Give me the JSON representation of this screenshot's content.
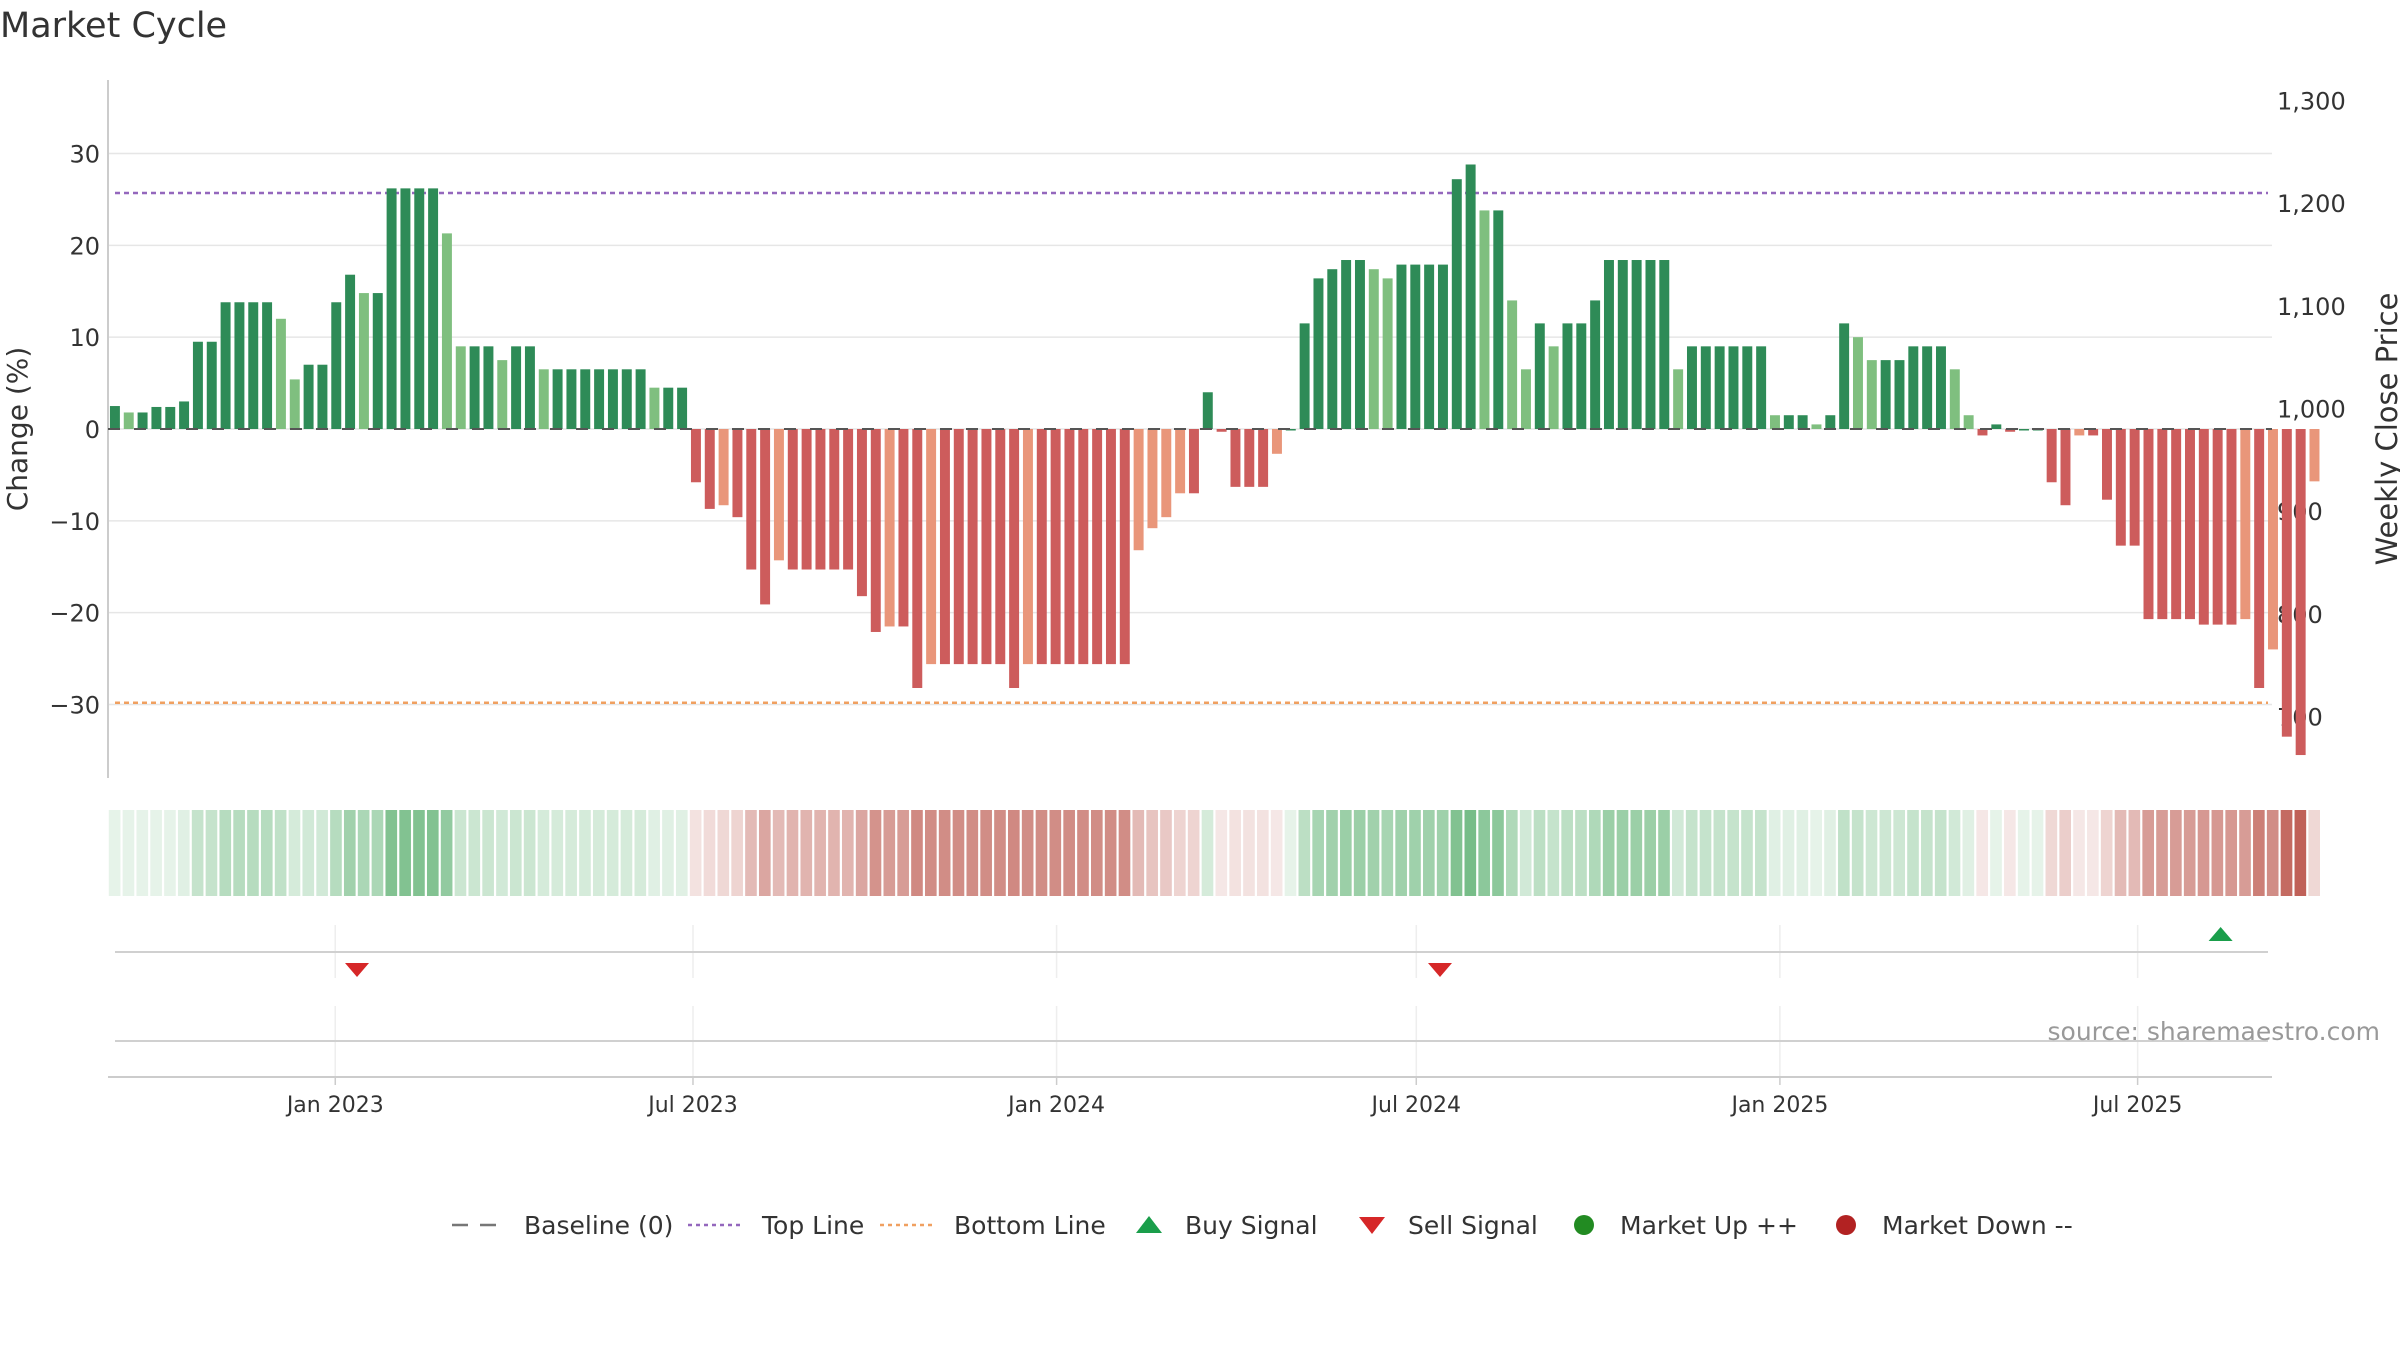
{
  "chart_data": {
    "type": "bar",
    "title": "Market Cycle",
    "ylabel": "Change (%)",
    "y2label": "Weekly Close Price",
    "ylim": [
      -38,
      38
    ],
    "y2lim": [
      640,
      1320
    ],
    "yticks": [
      -30,
      -20,
      -10,
      0,
      10,
      20,
      30
    ],
    "y2ticks": [
      700,
      800,
      900,
      1000,
      1100,
      1200,
      1300
    ],
    "y2tick_labels": [
      "700",
      "800",
      "900",
      "1,000",
      "1,100",
      "1,200",
      "1,300"
    ],
    "top_line": 25.7,
    "bottom_line": -29.8,
    "baseline": 0,
    "start_date": "2022-10-03",
    "x_range_days": [
      0,
      1095
    ],
    "week_days": 7,
    "xticks": [
      {
        "label": "Jan 2023",
        "day": 115
      },
      {
        "label": "Jul 2023",
        "day": 296
      },
      {
        "label": "Jan 2024",
        "day": 480
      },
      {
        "label": "Jul 2024",
        "day": 662
      },
      {
        "label": "Jan 2025",
        "day": 846
      },
      {
        "label": "Jul 2025",
        "day": 1027
      }
    ],
    "values": [
      2.5,
      1.8,
      1.8,
      2.4,
      2.4,
      3,
      9.5,
      9.5,
      13.8,
      13.8,
      13.8,
      13.8,
      12,
      5.4,
      7,
      7,
      13.8,
      16.8,
      14.8,
      14.8,
      26.2,
      26.2,
      26.2,
      26.2,
      21.3,
      9,
      9,
      9,
      7.5,
      9,
      9,
      6.5,
      6.5,
      6.5,
      6.5,
      6.5,
      6.5,
      6.5,
      6.5,
      4.5,
      4.5,
      4.5,
      -5.8,
      -8.7,
      -8.3,
      -9.6,
      -15.3,
      -19.1,
      -14.3,
      -15.3,
      -15.3,
      -15.3,
      -15.3,
      -15.3,
      -18.2,
      -22.1,
      -21.5,
      -21.5,
      -28.2,
      -25.6,
      -25.6,
      -25.6,
      -25.6,
      -25.6,
      -25.6,
      -28.2,
      -25.6,
      -25.6,
      -25.6,
      -25.6,
      -25.6,
      -25.6,
      -25.6,
      -25.6,
      -13.2,
      -10.8,
      -9.6,
      -7,
      -7,
      4,
      -0.3,
      -6.3,
      -6.3,
      -6.3,
      -2.7,
      0,
      11.5,
      16.4,
      17.4,
      18.4,
      18.4,
      17.4,
      16.4,
      17.9,
      17.9,
      17.9,
      17.9,
      27.2,
      28.8,
      23.8,
      23.8,
      14,
      6.5,
      11.5,
      9,
      11.5,
      11.5,
      14,
      18.4,
      18.4,
      18.4,
      18.4,
      18.4,
      6.5,
      9,
      9,
      9,
      9,
      9,
      9,
      1.5,
      1.5,
      1.5,
      0.5,
      1.5,
      11.5,
      10,
      7.5,
      7.5,
      7.5,
      9,
      9,
      9,
      6.5,
      1.5,
      -0.7,
      0.5,
      -0.3,
      0,
      0,
      -5.8,
      -8.3,
      -0.7,
      -0.7,
      -7.7,
      -12.7,
      -12.7,
      -20.7,
      -20.7,
      -20.7,
      -20.7,
      -21.3,
      -21.3,
      -21.3,
      -20.7,
      -28.2,
      -24,
      -33.5,
      -35.5,
      -5.7
    ],
    "cycle_shades": [
      0.12,
      0.12,
      0.12,
      0.12,
      0.12,
      0.15,
      0.28,
      0.28,
      0.35,
      0.35,
      0.35,
      0.35,
      0.3,
      0.2,
      0.22,
      0.22,
      0.35,
      0.45,
      0.4,
      0.4,
      0.6,
      0.6,
      0.6,
      0.6,
      0.52,
      0.25,
      0.25,
      0.25,
      0.22,
      0.25,
      0.25,
      0.2,
      0.2,
      0.2,
      0.2,
      0.2,
      0.2,
      0.2,
      0.2,
      0.15,
      0.15,
      0.15,
      0.15,
      0.18,
      0.2,
      0.22,
      0.35,
      0.45,
      0.35,
      0.38,
      0.38,
      0.38,
      0.38,
      0.38,
      0.45,
      0.55,
      0.5,
      0.5,
      0.6,
      0.58,
      0.58,
      0.58,
      0.58,
      0.58,
      0.58,
      0.6,
      0.58,
      0.58,
      0.58,
      0.58,
      0.58,
      0.58,
      0.58,
      0.58,
      0.35,
      0.3,
      0.28,
      0.22,
      0.22,
      0.2,
      0.12,
      0.15,
      0.15,
      0.15,
      0.12,
      0.12,
      0.32,
      0.42,
      0.45,
      0.48,
      0.48,
      0.45,
      0.42,
      0.46,
      0.46,
      0.46,
      0.46,
      0.6,
      0.65,
      0.55,
      0.55,
      0.38,
      0.22,
      0.32,
      0.28,
      0.32,
      0.32,
      0.38,
      0.48,
      0.48,
      0.48,
      0.48,
      0.48,
      0.22,
      0.28,
      0.28,
      0.28,
      0.28,
      0.28,
      0.28,
      0.15,
      0.15,
      0.15,
      0.12,
      0.15,
      0.3,
      0.28,
      0.24,
      0.24,
      0.24,
      0.28,
      0.28,
      0.28,
      0.22,
      0.15,
      0.12,
      0.12,
      0.12,
      0.12,
      0.12,
      0.2,
      0.25,
      0.12,
      0.12,
      0.22,
      0.35,
      0.35,
      0.5,
      0.5,
      0.5,
      0.5,
      0.52,
      0.52,
      0.52,
      0.5,
      0.65,
      0.58,
      0.75,
      0.8,
      0.2
    ],
    "sell_signal_days": [
      126,
      674
    ],
    "buy_signal_days": [
      1069
    ],
    "legend": [
      {
        "label": "Baseline (0)",
        "symbol": "dash",
        "color": "#777777"
      },
      {
        "label": "Top Line",
        "symbol": "dot",
        "color": "#9467bd"
      },
      {
        "label": "Bottom Line",
        "symbol": "dot",
        "color": "#f0a060"
      },
      {
        "label": "Buy Signal",
        "symbol": "triangle-up",
        "color": "#1a9e4b"
      },
      {
        "label": "Sell Signal",
        "symbol": "triangle-down",
        "color": "#d62728"
      },
      {
        "label": "Market Up ++",
        "symbol": "circle",
        "color": "#228b22"
      },
      {
        "label": "Market Down --",
        "symbol": "circle",
        "color": "#b22222"
      }
    ],
    "source_text": "source: sharemaestro.com"
  },
  "colors": {
    "up_strong": "#2e8b57",
    "up_light": "#7fbf7f",
    "down_strong": "#cd5c5c",
    "down_light": "#e9967a",
    "cycle_up": "#2e9a48",
    "cycle_down": "#b03a2e",
    "top_line": "#9467bd",
    "bottom_line": "#f0a060",
    "grid": "#e6e6e6",
    "axis": "#cccccc",
    "text": "#333333",
    "source": "#999999"
  }
}
